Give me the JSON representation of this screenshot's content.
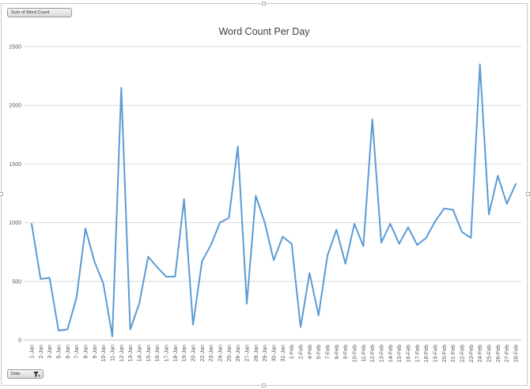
{
  "pivot": {
    "value_field_label": "Sum of Word Count",
    "axis_field_label": "Date",
    "axis_field_icon": "filter-dropdown-icon"
  },
  "colors": {
    "series": "#5b9bd5",
    "gridline": "#d9d9d9",
    "text": "#595959"
  },
  "chart_data": {
    "type": "line",
    "title": "Word Count Per Day",
    "xlabel": "",
    "ylabel": "",
    "ylim": [
      0,
      2500
    ],
    "yticks": [
      0,
      500,
      1000,
      1500,
      2000,
      2500
    ],
    "grid": true,
    "legend": "none",
    "categories": [
      "1-Jan",
      "2-Jan",
      "3-Jan",
      "5-Jan",
      "6-Jan",
      "7-Jan",
      "8-Jan",
      "9-Jan",
      "10-Jan",
      "11-Jan",
      "12-Jan",
      "13-Jan",
      "14-Jan",
      "15-Jan",
      "16-Jan",
      "17-Jan",
      "18-Jan",
      "19-Jan",
      "20-Jan",
      "22-Jan",
      "23-Jan",
      "24-Jan",
      "25-Jan",
      "26-Jan",
      "27-Jan",
      "28-Jan",
      "29-Jan",
      "30-Jan",
      "31-Jan",
      "1-Feb",
      "2-Feb",
      "4-Feb",
      "5-Feb",
      "7-Feb",
      "8-Feb",
      "9-Feb",
      "10-Feb",
      "11-Feb",
      "12-Feb",
      "13-Feb",
      "14-Feb",
      "15-Feb",
      "16-Feb",
      "17-Feb",
      "18-Feb",
      "19-Feb",
      "20-Feb",
      "21-Feb",
      "22-Feb",
      "23-Feb",
      "24-Feb",
      "25-Feb",
      "26-Feb",
      "27-Feb",
      "28-Feb"
    ],
    "series": [
      {
        "values": [
          990,
          520,
          530,
          80,
          90,
          360,
          950,
          670,
          480,
          30,
          2150,
          90,
          310,
          710,
          620,
          540,
          540,
          1200,
          130,
          670,
          810,
          1000,
          1040,
          1650,
          310,
          1230,
          1000,
          680,
          880,
          820,
          110,
          570,
          210,
          720,
          940,
          650,
          990,
          800,
          1880,
          830,
          990,
          820,
          960,
          810,
          870,
          1010,
          1120,
          1110,
          920,
          870,
          2350,
          1070,
          1400,
          1160,
          1330
        ]
      }
    ]
  }
}
